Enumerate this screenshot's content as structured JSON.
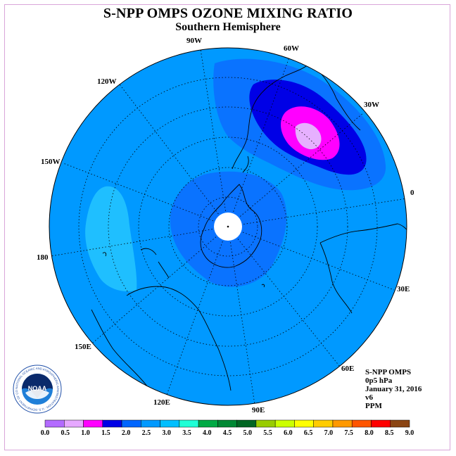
{
  "header": {
    "title": "S-NPP OMPS OZONE MIXING RATIO",
    "subtitle": "Southern Hemisphere"
  },
  "map": {
    "longitude_labels": [
      "90W",
      "60W",
      "120W",
      "30W",
      "150W",
      "0",
      "180",
      "30E",
      "150E",
      "60E",
      "120E",
      "90E"
    ],
    "ocean_color": "#0099ff",
    "pole_mask_color": "#ffffff"
  },
  "info": {
    "instrument": "S-NPP OMPS",
    "level": "0p5 hPa",
    "date": "January 31, 2016",
    "version": "v6",
    "units": "PPM"
  },
  "colorbar": {
    "ticks": [
      "0.0",
      "0.5",
      "1.0",
      "1.5",
      "2.0",
      "2.5",
      "3.0",
      "3.5",
      "4.0",
      "4.5",
      "5.0",
      "5.5",
      "6.0",
      "6.5",
      "7.0",
      "7.5",
      "8.0",
      "8.5",
      "9.0"
    ],
    "colors": [
      "#b36bff",
      "#e6a8ff",
      "#ff00ff",
      "#0000e6",
      "#0066ff",
      "#0099ff",
      "#00bfff",
      "#1fffd6",
      "#00aa44",
      "#008833",
      "#006622",
      "#99cc00",
      "#ccff00",
      "#ffff00",
      "#ffcc00",
      "#ff9900",
      "#ff5500",
      "#ff0000",
      "#8b4513"
    ]
  },
  "logo": {
    "text": "NOAA",
    "ring_text": "NATIONAL OCEANIC AND ATMOSPHERIC ADMINISTRATION · U.S. DEPARTMENT OF COMMERCE"
  }
}
